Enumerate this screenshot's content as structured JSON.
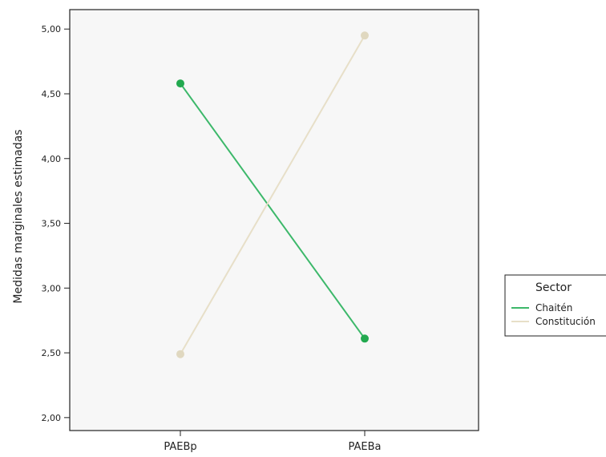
{
  "chart_data": {
    "type": "line",
    "title": "",
    "xlabel": "",
    "ylabel": "Medidas marginales estimadas",
    "categories": [
      "PAEBp",
      "PAEBa"
    ],
    "ylim": [
      1.9,
      5.15
    ],
    "yticks": [
      "2,00",
      "2,50",
      "3,00",
      "3,50",
      "4,00",
      "4,50",
      "5,00"
    ],
    "ytick_values": [
      2.0,
      2.5,
      3.0,
      3.5,
      4.0,
      4.5,
      5.0
    ],
    "grid": false,
    "legend": {
      "title": "Sector",
      "placement": "right"
    },
    "series": [
      {
        "name": "Chaitén",
        "values": [
          4.58,
          2.61
        ],
        "color": "#3cb86a",
        "marker_color": "#22a94f"
      },
      {
        "name": "Constitución",
        "values": [
          2.49,
          4.95
        ],
        "color": "#e7dfc8",
        "marker_color": "#e0d8c0"
      }
    ]
  }
}
